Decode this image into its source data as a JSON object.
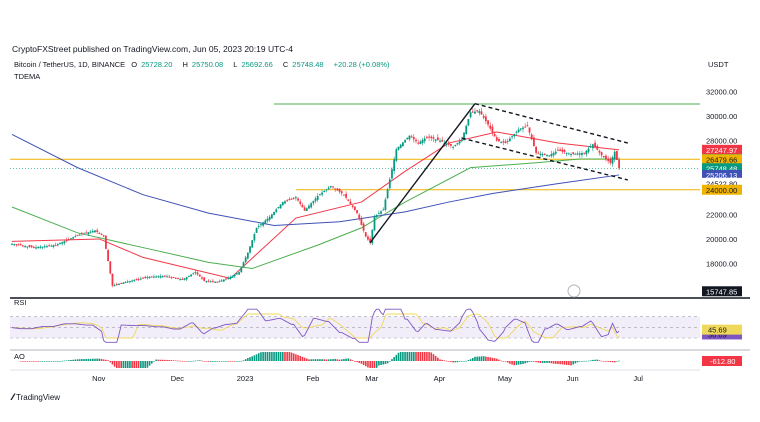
{
  "header": {
    "published_line": "CryptoFXStreet published on TradingView.com, Jun 05, 2023 20:19 UTC-4",
    "symbol": "Bitcoin / TetherUS, 1D, BINANCE",
    "ohlc": {
      "open_label": "O",
      "open": "25728.20",
      "high_label": "H",
      "high": "25750.08",
      "low_label": "L",
      "low": "25692.66",
      "close_label": "C",
      "close": "25748.48",
      "change": "+20.28 (+0.08%)"
    },
    "indicator": "TDEMA",
    "currency": "USDT"
  },
  "footer": {
    "brand": "TradingView",
    "logo": "tradingview-logo-icon"
  },
  "colors": {
    "up": "#089981",
    "down": "#f23645",
    "ema_red": "#f23645",
    "ema_green": "#4caf50",
    "ema_blue": "#3f51b5",
    "level_orange": "#f0b400",
    "level_green": "#4caf50",
    "rsi_line": "#7e57c2",
    "rsi_ma": "#f0d85a"
  },
  "chart_data": [
    {
      "type": "candlestick",
      "title": "Bitcoin / TetherUS, 1D, BINANCE",
      "xlabel": "",
      "ylabel": "",
      "ylim": [
        15200,
        32600
      ],
      "x_ticks": [
        "Nov",
        "Dec",
        "2023",
        "Feb",
        "Mar",
        "Apr",
        "May",
        "Jun",
        "Jul"
      ],
      "y_ticks": [
        18000,
        20000,
        22000,
        24000,
        26000,
        28000,
        30000,
        32000
      ],
      "y_tick_labels": [
        "18000.00",
        "20000.00",
        "22000.00",
        "24000.00",
        "26000.00",
        "28000.00",
        "30000.00",
        "32000.00"
      ],
      "price_path": [
        [
          0,
          19600
        ],
        [
          10,
          19300
        ],
        [
          20,
          19500
        ],
        [
          30,
          20300
        ],
        [
          38,
          20700
        ],
        [
          42,
          20200
        ],
        [
          46,
          16200
        ],
        [
          52,
          16500
        ],
        [
          62,
          16900
        ],
        [
          70,
          17000
        ],
        [
          78,
          16700
        ],
        [
          84,
          17300
        ],
        [
          88,
          16600
        ],
        [
          94,
          16500
        ],
        [
          100,
          16900
        ],
        [
          104,
          17300
        ],
        [
          108,
          18900
        ],
        [
          112,
          20900
        ],
        [
          118,
          21800
        ],
        [
          124,
          23000
        ],
        [
          130,
          23400
        ],
        [
          134,
          22300
        ],
        [
          140,
          23500
        ],
        [
          146,
          24300
        ],
        [
          152,
          23600
        ],
        [
          158,
          22100
        ],
        [
          162,
          20200
        ],
        [
          164,
          19700
        ],
        [
          166,
          21800
        ],
        [
          170,
          22400
        ],
        [
          176,
          27300
        ],
        [
          182,
          28400
        ],
        [
          186,
          27800
        ],
        [
          190,
          28300
        ],
        [
          196,
          28000
        ],
        [
          202,
          27500
        ],
        [
          206,
          28100
        ],
        [
          210,
          30300
        ],
        [
          214,
          30400
        ],
        [
          218,
          29300
        ],
        [
          222,
          28000
        ],
        [
          226,
          27800
        ],
        [
          232,
          28900
        ],
        [
          236,
          29200
        ],
        [
          240,
          27000
        ],
        [
          246,
          26800
        ],
        [
          250,
          27200
        ],
        [
          256,
          26900
        ],
        [
          262,
          27000
        ],
        [
          266,
          27700
        ],
        [
          270,
          26800
        ],
        [
          274,
          26200
        ],
        [
          276,
          27100
        ],
        [
          278,
          25750
        ]
      ],
      "series": [
        {
          "name": "",
          "color": "#f23645",
          "values": [
            [
              0,
              19800
            ],
            [
              40,
              20000
            ],
            [
              60,
              18500
            ],
            [
              100,
              16800
            ],
            [
              130,
              21700
            ],
            [
              160,
              23000
            ],
            [
              180,
              25500
            ],
            [
              200,
              27800
            ],
            [
              222,
              28700
            ],
            [
              250,
              27800
            ],
            [
              278,
              27247.97
            ]
          ]
        },
        {
          "name": "",
          "color": "#4caf50",
          "values": [
            [
              0,
              22600
            ],
            [
              30,
              20500
            ],
            [
              60,
              19300
            ],
            [
              90,
              18100
            ],
            [
              110,
              17600
            ],
            [
              140,
              19500
            ],
            [
              160,
              20900
            ],
            [
              180,
              23000
            ],
            [
              210,
              25800
            ],
            [
              240,
              26200
            ],
            [
              260,
              26500
            ],
            [
              278,
              26503.54
            ]
          ]
        },
        {
          "name": "",
          "color": "#3f51b5",
          "values": [
            [
              0,
              28500
            ],
            [
              30,
              25800
            ],
            [
              60,
              23600
            ],
            [
              90,
              22100
            ],
            [
              120,
              21100
            ],
            [
              150,
              21400
            ],
            [
              180,
              22200
            ],
            [
              200,
              23000
            ],
            [
              220,
              23700
            ],
            [
              250,
              24500
            ],
            [
              278,
              25206.13
            ]
          ]
        }
      ],
      "horizontal_levels": [
        {
          "value": 30976.29,
          "color": "#4caf50",
          "label": "30976.29"
        },
        {
          "value": 26479.66,
          "color": "#f0b400",
          "label": "26479.66"
        },
        {
          "value": 24000.0,
          "color": "#f0b400",
          "label": "24000.00"
        }
      ],
      "price_labels": [
        {
          "value": 27247.97,
          "text": "27247.97",
          "color": "#f23645"
        },
        {
          "value": 26503.54,
          "text": "26503.54",
          "color": "#089981"
        },
        {
          "value": 26479.66,
          "text": "26479.66",
          "color": "#f0b400"
        },
        {
          "value": 25748.48,
          "text": "25748.48",
          "color": "#089981"
        },
        {
          "value": 25206.13,
          "text": "25206.13",
          "color": "#3f51b5"
        },
        {
          "value": 24522.8,
          "text": "24522.80",
          "color": "#ffffff"
        },
        {
          "value": 24000.0,
          "text": "24000.00",
          "color": "#f0b400"
        },
        {
          "value": 15747.85,
          "text": "15747.85",
          "color": "#131722"
        }
      ],
      "trendlines": [
        {
          "from": [
            164,
            19700
          ],
          "to": [
            212,
            31000
          ],
          "style": "solid"
        },
        {
          "from": [
            212,
            31000
          ],
          "to": [
            282,
            27800
          ],
          "style": "dashed"
        },
        {
          "from": [
            206,
            28200
          ],
          "to": [
            282,
            24800
          ],
          "style": "dashed"
        }
      ]
    },
    {
      "type": "line",
      "title": "RSI",
      "ylim": [
        15,
        90
      ],
      "levels": [
        70,
        50,
        30
      ],
      "series": [
        {
          "name": "",
          "color": "#7e57c2",
          "last": 36.69,
          "last_label": "36.69"
        },
        {
          "name": "",
          "color": "#f0d85a",
          "last": 45.69,
          "last_label": "45.69"
        }
      ]
    },
    {
      "type": "histogram",
      "title": "AO",
      "last": -612.8,
      "last_label": "-612.80"
    }
  ]
}
